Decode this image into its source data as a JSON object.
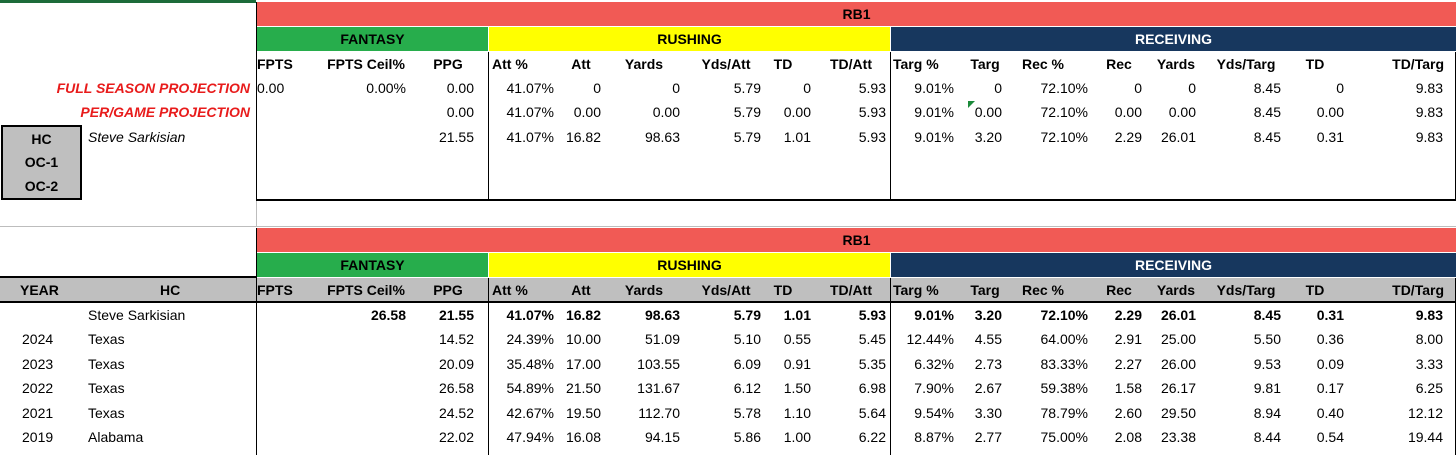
{
  "top": {
    "position_title": "RB1",
    "groups": {
      "fantasy": "FANTASY",
      "rushing": "RUSHING",
      "receiving": "RECEIVING"
    },
    "columns": [
      "FPTS",
      "FPTS Ceil%",
      "PPG",
      "Att %",
      "Att",
      "Yards",
      "Yds/Att",
      "TD",
      "TD/Att",
      "Targ %",
      "Targ",
      "Rec %",
      "Rec",
      "Yards",
      "Yds/Targ",
      "TD",
      "TD/Targ"
    ],
    "projection_labels": [
      "FULL SEASON PROJECTION",
      "PER/GAME PROJECTION"
    ],
    "rows": [
      [
        "0.00",
        "0.00%",
        "0.00",
        "41.07%",
        "0",
        "0",
        "5.79",
        "0",
        "5.93",
        "9.01%",
        "0",
        "72.10%",
        "0",
        "0",
        "8.45",
        "0",
        "9.83"
      ],
      [
        "",
        "",
        "0.00",
        "41.07%",
        "0.00",
        "0.00",
        "5.79",
        "0.00",
        "5.93",
        "9.01%",
        "0.00",
        "72.10%",
        "0.00",
        "0.00",
        "8.45",
        "0.00",
        "9.83"
      ],
      [
        "",
        "",
        "21.55",
        "41.07%",
        "16.82",
        "98.63",
        "5.79",
        "1.01",
        "5.93",
        "9.01%",
        "3.20",
        "72.10%",
        "2.29",
        "26.01",
        "8.45",
        "0.31",
        "9.83"
      ]
    ],
    "coach_box": {
      "labels": [
        "HC",
        "OC-1",
        "OC-2"
      ],
      "hc_name": "Steve Sarkisian"
    }
  },
  "bottom": {
    "position_title": "RB1",
    "groups": {
      "fantasy": "FANTASY",
      "rushing": "RUSHING",
      "receiving": "RECEIVING"
    },
    "left_headers": {
      "year": "YEAR",
      "hc": "HC"
    },
    "columns": [
      "FPTS",
      "FPTS Ceil%",
      "PPG",
      "Att %",
      "Att",
      "Yards",
      "Yds/Att",
      "TD",
      "TD/Att",
      "Targ %",
      "Targ",
      "Rec %",
      "Rec",
      "Yards",
      "Yds/Targ",
      "TD",
      "TD/Targ"
    ],
    "rows": [
      {
        "year": "",
        "hc": "Steve Sarkisian",
        "values": [
          "",
          "26.58",
          "21.55",
          "41.07%",
          "16.82",
          "98.63",
          "5.79",
          "1.01",
          "5.93",
          "9.01%",
          "3.20",
          "72.10%",
          "2.29",
          "26.01",
          "8.45",
          "0.31",
          "9.83"
        ]
      },
      {
        "year": "2024",
        "hc": "Texas",
        "values": [
          "",
          "",
          "14.52",
          "24.39%",
          "10.00",
          "51.09",
          "5.10",
          "0.55",
          "5.45",
          "12.44%",
          "4.55",
          "64.00%",
          "2.91",
          "25.00",
          "5.50",
          "0.36",
          "8.00"
        ]
      },
      {
        "year": "2023",
        "hc": "Texas",
        "values": [
          "",
          "",
          "20.09",
          "35.48%",
          "17.00",
          "103.55",
          "6.09",
          "0.91",
          "5.35",
          "6.32%",
          "2.73",
          "83.33%",
          "2.27",
          "26.00",
          "9.53",
          "0.09",
          "3.33"
        ]
      },
      {
        "year": "2022",
        "hc": "Texas",
        "values": [
          "",
          "",
          "26.58",
          "54.89%",
          "21.50",
          "131.67",
          "6.12",
          "1.50",
          "6.98",
          "7.90%",
          "2.67",
          "59.38%",
          "1.58",
          "26.17",
          "9.81",
          "0.17",
          "6.25"
        ]
      },
      {
        "year": "2021",
        "hc": "Texas",
        "values": [
          "",
          "",
          "24.52",
          "42.67%",
          "19.50",
          "112.70",
          "5.78",
          "1.10",
          "5.64",
          "9.54%",
          "3.30",
          "78.79%",
          "2.60",
          "29.50",
          "8.94",
          "0.40",
          "12.12"
        ]
      },
      {
        "year": "2019",
        "hc": "Alabama",
        "values": [
          "",
          "",
          "22.02",
          "47.94%",
          "16.08",
          "94.15",
          "5.86",
          "1.00",
          "6.22",
          "8.87%",
          "2.77",
          "75.00%",
          "2.08",
          "23.38",
          "8.44",
          "0.54",
          "19.44"
        ]
      }
    ]
  },
  "colors": {
    "title_band": "#f15a55",
    "fantasy": "#27ad4c",
    "rushing": "#ffff00",
    "receiving": "#17375e",
    "projection_text": "#e81b1b",
    "header_gray": "#bfbfbf"
  }
}
